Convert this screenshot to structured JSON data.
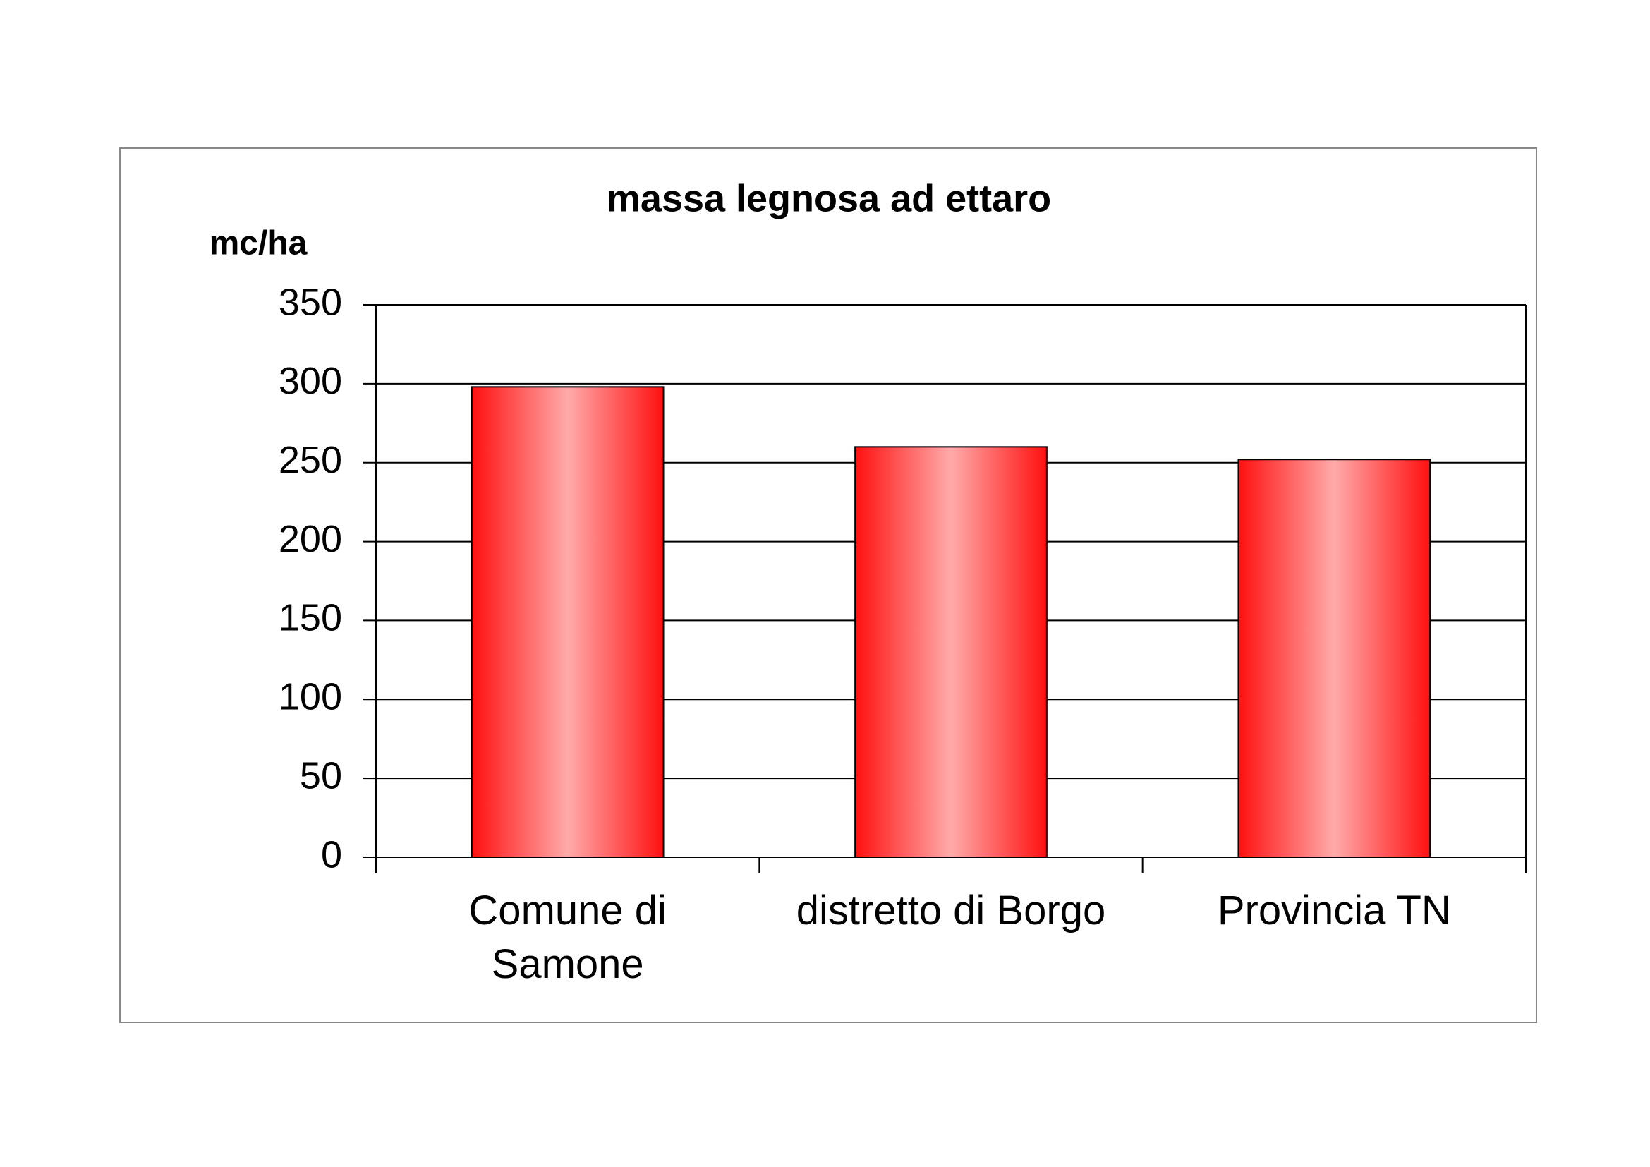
{
  "chart_data": {
    "type": "bar",
    "title": "massa legnosa ad ettaro",
    "y_label": "mc/ha",
    "categories": [
      "Comune di\nSamone",
      "distretto di Borgo",
      "Provincia TN"
    ],
    "values": [
      298,
      260,
      252
    ],
    "color": "#ff0000",
    "ylim": [
      0,
      350
    ],
    "yticks": [
      0,
      50,
      100,
      150,
      200,
      250,
      300,
      350
    ],
    "grid": true
  }
}
